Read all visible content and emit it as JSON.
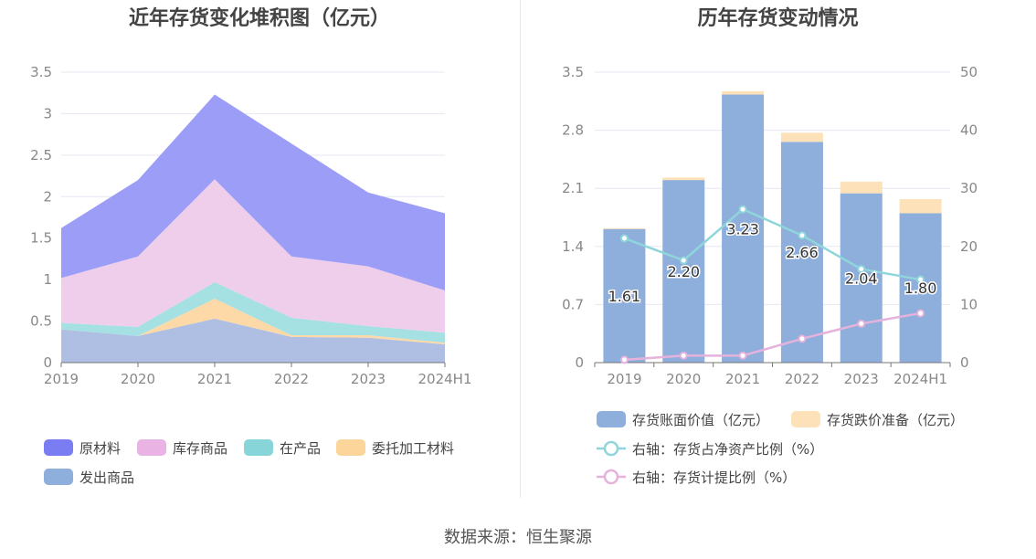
{
  "source": "数据来源：恒生聚源",
  "chart_data": [
    {
      "type": "area",
      "stacked": true,
      "title": "近年存货变化堆积图（亿元）",
      "categories": [
        "2019",
        "2020",
        "2021",
        "2022",
        "2023",
        "2024H1"
      ],
      "y_ticks": [
        "0",
        "0.5",
        "1",
        "1.5",
        "2",
        "2.5",
        "3",
        "3.5"
      ],
      "ylim": [
        0,
        3.5
      ],
      "series": [
        {
          "name": "发出商品",
          "values": [
            0.4,
            0.32,
            0.53,
            0.31,
            0.3,
            0.22
          ],
          "color": "#aebfe3"
        },
        {
          "name": "委托加工材料",
          "values": [
            0.0,
            0.0,
            0.24,
            0.02,
            0.03,
            0.02
          ],
          "color": "#fcd9a6"
        },
        {
          "name": "在产品",
          "values": [
            0.08,
            0.11,
            0.2,
            0.21,
            0.11,
            0.12
          ],
          "color": "#a5e0e3"
        },
        {
          "name": "库存商品",
          "values": [
            0.54,
            0.85,
            1.24,
            0.74,
            0.72,
            0.51
          ],
          "color": "#eeceeb"
        },
        {
          "name": "原材料",
          "values": [
            0.6,
            0.92,
            1.02,
            1.36,
            0.89,
            0.93
          ],
          "color": "#9c9df7"
        }
      ],
      "legend": [
        {
          "name": "原材料",
          "color": "#7a7df1"
        },
        {
          "name": "库存商品",
          "color": "#e9b4e3"
        },
        {
          "name": "在产品",
          "color": "#87d5d8"
        },
        {
          "name": "委托加工材料",
          "color": "#fbd59a"
        },
        {
          "name": "发出商品",
          "color": "#8eaedc"
        }
      ]
    },
    {
      "type": "bar",
      "stacked": true,
      "title": "历年存货变动情况",
      "categories": [
        "2019",
        "2020",
        "2021",
        "2022",
        "2023",
        "2024H1"
      ],
      "y_ticks": [
        "0",
        "0.7",
        "1.4",
        "2.1",
        "2.8",
        "3.5"
      ],
      "y_right_ticks": [
        "0",
        "10",
        "20",
        "30",
        "40",
        "50"
      ],
      "ylim": [
        0,
        3.5
      ],
      "ylim_right": [
        0,
        50
      ],
      "series": [
        {
          "name": "存货账面价值（亿元）",
          "values": [
            1.61,
            2.2,
            3.23,
            2.66,
            2.04,
            1.8
          ],
          "labels": [
            "1.61",
            "2.20",
            "3.23",
            "2.66",
            "2.04",
            "1.80"
          ],
          "color": "#8eaedc"
        },
        {
          "name": "存货跌价准备（亿元）",
          "values": [
            0.01,
            0.03,
            0.04,
            0.11,
            0.14,
            0.17
          ],
          "color": "#fde1b8"
        }
      ],
      "line_series": [
        {
          "name": "右轴：存货占净资产比例（%）",
          "values": [
            21.4,
            17.6,
            26.4,
            21.9,
            16.1,
            14.3
          ],
          "color": "#8fd6da"
        },
        {
          "name": "右轴：存货计提比例（%）",
          "values": [
            0.5,
            1.2,
            1.2,
            4.1,
            6.7,
            8.5
          ],
          "color": "#e5b2dc"
        }
      ]
    }
  ]
}
